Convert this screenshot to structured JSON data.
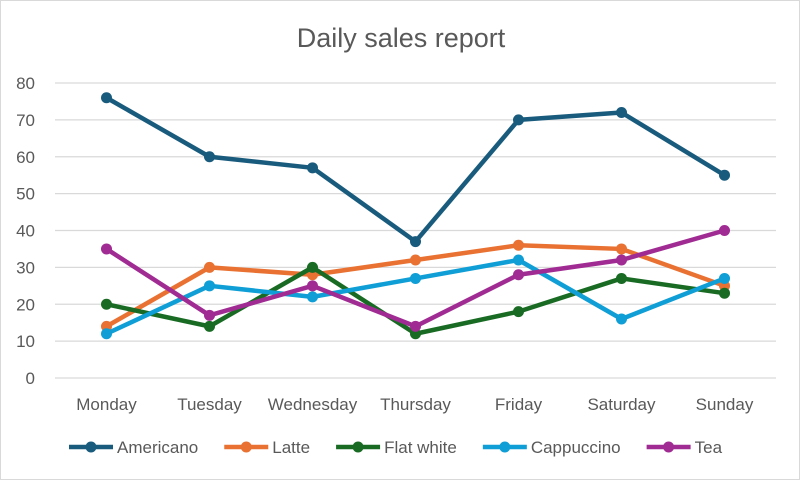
{
  "chart_data": {
    "type": "line",
    "title": "Daily sales report",
    "xlabel": "",
    "ylabel": "",
    "categories": [
      "Monday",
      "Tuesday",
      "Wednesday",
      "Thursday",
      "Friday",
      "Saturday",
      "Sunday"
    ],
    "ylim": [
      0,
      80
    ],
    "yticks": [
      0,
      10,
      20,
      30,
      40,
      50,
      60,
      70,
      80
    ],
    "grid": true,
    "legend": "bottom",
    "series": [
      {
        "name": "Americano",
        "color": "#195b7d",
        "values": [
          76,
          60,
          57,
          37,
          70,
          72,
          55
        ]
      },
      {
        "name": "Latte",
        "color": "#e97132",
        "values": [
          14,
          30,
          28,
          32,
          36,
          35,
          25
        ]
      },
      {
        "name": "Flat white",
        "color": "#196b24",
        "values": [
          20,
          14,
          30,
          12,
          18,
          27,
          23
        ]
      },
      {
        "name": "Cappuccino",
        "color": "#0f9ed5",
        "values": [
          12,
          25,
          22,
          27,
          32,
          16,
          27
        ]
      },
      {
        "name": "Tea",
        "color": "#a02b93",
        "values": [
          35,
          17,
          25,
          14,
          28,
          32,
          40
        ]
      }
    ]
  }
}
